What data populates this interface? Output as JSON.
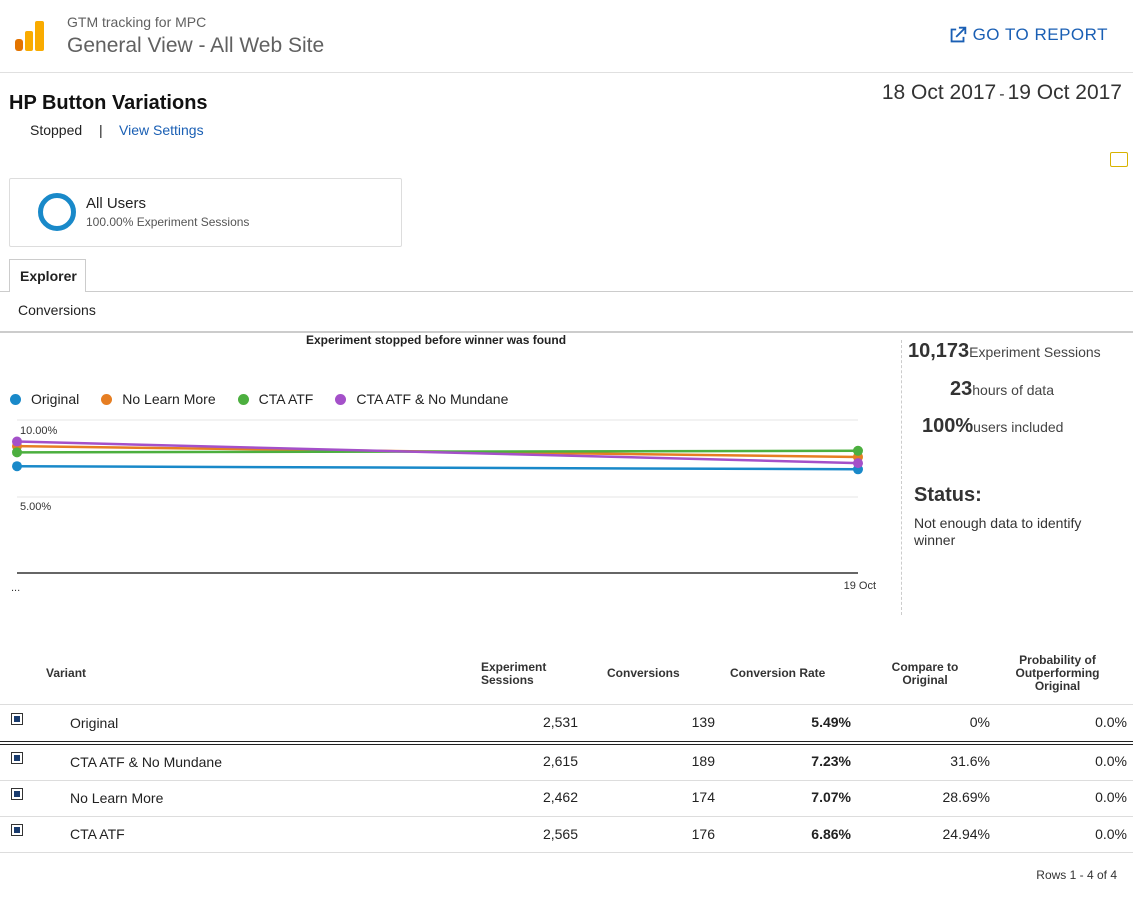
{
  "header": {
    "account": "GTM tracking for MPC",
    "view": "General View - All Web Site",
    "goto_label": "GO TO REPORT"
  },
  "experiment": {
    "title": "HP Button Variations",
    "status": "Stopped",
    "separator": "|",
    "view_settings": "View Settings",
    "date_start": "18 Oct 2017",
    "date_sep": "-",
    "date_end": "19 Oct 2017"
  },
  "segment": {
    "name": "All Users",
    "sub": "100.00% Experiment Sessions"
  },
  "tabs": {
    "explorer": "Explorer",
    "conversions": "Conversions"
  },
  "chart_data": {
    "type": "line",
    "title": "Experiment stopped before winner was found",
    "x": [
      "18 Oct",
      "19 Oct"
    ],
    "x_tick_labels": [
      "...",
      "19 Oct"
    ],
    "y_tick_labels": [
      "10.00%",
      "5.00%"
    ],
    "ylim": [
      3.5,
      10.5
    ],
    "legend_position": "top-left",
    "series": [
      {
        "name": "Original",
        "color": "#1989c9",
        "values": [
          7.0,
          6.8
        ]
      },
      {
        "name": "No Learn More",
        "color": "#e67e22",
        "values": [
          8.3,
          7.6
        ]
      },
      {
        "name": "CTA ATF",
        "color": "#4caf3f",
        "values": [
          7.9,
          8.0
        ]
      },
      {
        "name": "CTA ATF & No Mundane",
        "color": "#a450c9",
        "values": [
          8.6,
          7.2
        ]
      }
    ]
  },
  "stats": {
    "sessions_value": "10,173",
    "sessions_label": "Experiment Sessions",
    "hours_value": "23",
    "hours_label": "hours of data",
    "users_value": "100%",
    "users_label": "users included",
    "status_label": "Status:",
    "status_text": "Not enough data to identify winner"
  },
  "table": {
    "headers": {
      "variant": "Variant",
      "sessions": "Experiment Sessions",
      "conversions": "Conversions",
      "rate": "Conversion Rate",
      "compare": "Compare to Original",
      "probability": "Probability of Outperforming Original"
    },
    "rows": [
      {
        "variant": "Original",
        "sessions": "2,531",
        "conversions": "139",
        "rate": "5.49%",
        "compare": "0%",
        "probability": "0.0%"
      },
      {
        "variant": "CTA ATF & No Mundane",
        "sessions": "2,615",
        "conversions": "189",
        "rate": "7.23%",
        "compare": "31.6%",
        "probability": "0.0%"
      },
      {
        "variant": "No Learn More",
        "sessions": "2,462",
        "conversions": "174",
        "rate": "7.07%",
        "compare": "28.69%",
        "probability": "0.0%"
      },
      {
        "variant": "CTA ATF",
        "sessions": "2,565",
        "conversions": "176",
        "rate": "6.86%",
        "compare": "24.94%",
        "probability": "0.0%"
      }
    ],
    "footer": "Rows 1 - 4 of 4"
  }
}
